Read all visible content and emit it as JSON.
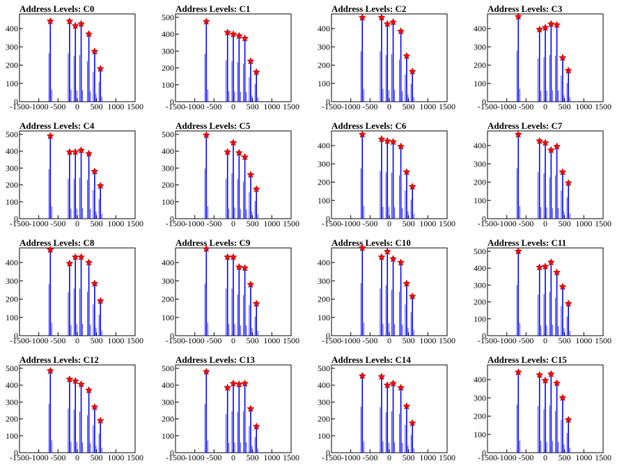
{
  "chart_data": [
    {
      "type": "bar",
      "title": "Address Levels: C0",
      "xlim": [
        -1500,
        1500
      ],
      "ylim": [
        0,
        480
      ],
      "yticks": [
        0,
        100,
        200,
        300,
        400
      ],
      "xticks": [
        -1500,
        -1000,
        -500,
        0,
        500,
        1000,
        1500
      ],
      "x": [
        -700,
        -200,
        -50,
        100,
        300,
        450,
        600
      ],
      "values": [
        440,
        440,
        415,
        425,
        370,
        275,
        180
      ]
    },
    {
      "type": "bar",
      "title": "Address Levels: C1",
      "xlim": [
        -1500,
        1500
      ],
      "ylim": [
        0,
        520
      ],
      "yticks": [
        0,
        100,
        200,
        300,
        400,
        500
      ],
      "xticks": [
        -1500,
        -1000,
        -500,
        0,
        500,
        1000,
        1500
      ],
      "x": [
        -700,
        -150,
        0,
        150,
        300,
        450,
        600
      ],
      "values": [
        475,
        410,
        400,
        390,
        375,
        240,
        175
      ]
    },
    {
      "type": "bar",
      "title": "Address Levels: C2",
      "xlim": [
        -1500,
        1500
      ],
      "ylim": [
        0,
        480
      ],
      "yticks": [
        0,
        100,
        200,
        300,
        400
      ],
      "xticks": [
        -1500,
        -1000,
        -500,
        0,
        500,
        1000,
        1500
      ],
      "x": [
        -700,
        -200,
        -50,
        100,
        300,
        450,
        600
      ],
      "values": [
        460,
        460,
        425,
        435,
        385,
        250,
        165
      ]
    },
    {
      "type": "bar",
      "title": "Address Levels: C3",
      "xlim": [
        -1500,
        1500
      ],
      "ylim": [
        0,
        480
      ],
      "yticks": [
        0,
        100,
        200,
        300,
        400
      ],
      "xticks": [
        -1500,
        -1000,
        -500,
        0,
        500,
        1000,
        1500
      ],
      "x": [
        -700,
        -150,
        0,
        150,
        300,
        450,
        600
      ],
      "values": [
        465,
        395,
        405,
        425,
        420,
        240,
        170
      ]
    },
    {
      "type": "bar",
      "title": "Address Levels: C4",
      "xlim": [
        -1500,
        1500
      ],
      "ylim": [
        0,
        520
      ],
      "yticks": [
        0,
        100,
        200,
        300,
        400,
        500
      ],
      "xticks": [
        -1500,
        -1000,
        -500,
        0,
        500,
        1000,
        1500
      ],
      "x": [
        -700,
        -200,
        -50,
        100,
        300,
        450,
        600
      ],
      "values": [
        490,
        395,
        395,
        405,
        385,
        280,
        195
      ]
    },
    {
      "type": "bar",
      "title": "Address Levels: C5",
      "xlim": [
        -1500,
        1500
      ],
      "ylim": [
        0,
        520
      ],
      "yticks": [
        0,
        100,
        200,
        300,
        400,
        500
      ],
      "xticks": [
        -1500,
        -1000,
        -500,
        0,
        500,
        1000,
        1500
      ],
      "x": [
        -700,
        -150,
        0,
        150,
        300,
        450,
        600
      ],
      "values": [
        495,
        395,
        450,
        390,
        365,
        260,
        175
      ]
    },
    {
      "type": "bar",
      "title": "Address Levels: C6",
      "xlim": [
        -1500,
        1500
      ],
      "ylim": [
        0,
        480
      ],
      "yticks": [
        0,
        100,
        200,
        300,
        400
      ],
      "xticks": [
        -1500,
        -1000,
        -500,
        0,
        500,
        1000,
        1500
      ],
      "x": [
        -700,
        -200,
        -50,
        100,
        300,
        450,
        600
      ],
      "values": [
        460,
        435,
        425,
        420,
        395,
        255,
        175
      ]
    },
    {
      "type": "bar",
      "title": "Address Levels: C7",
      "xlim": [
        -1500,
        1500
      ],
      "ylim": [
        0,
        480
      ],
      "yticks": [
        0,
        100,
        200,
        300,
        400
      ],
      "xticks": [
        -1500,
        -1000,
        -500,
        0,
        500,
        1000,
        1500
      ],
      "x": [
        -700,
        -150,
        0,
        150,
        300,
        450,
        600
      ],
      "values": [
        460,
        425,
        415,
        375,
        395,
        255,
        195
      ]
    },
    {
      "type": "bar",
      "title": "Address Levels: C8",
      "xlim": [
        -1500,
        1500
      ],
      "ylim": [
        0,
        480
      ],
      "yticks": [
        0,
        100,
        200,
        300,
        400
      ],
      "xticks": [
        -1500,
        -1000,
        -500,
        0,
        500,
        1000,
        1500
      ],
      "x": [
        -700,
        -200,
        -50,
        100,
        300,
        450,
        600
      ],
      "values": [
        470,
        395,
        430,
        430,
        400,
        285,
        190
      ]
    },
    {
      "type": "bar",
      "title": "Address Levels: C9",
      "xlim": [
        -1500,
        1500
      ],
      "ylim": [
        0,
        480
      ],
      "yticks": [
        0,
        100,
        200,
        300,
        400
      ],
      "xticks": [
        -1500,
        -1000,
        -500,
        0,
        500,
        1000,
        1500
      ],
      "x": [
        -700,
        -150,
        0,
        150,
        300,
        450,
        600
      ],
      "values": [
        475,
        430,
        430,
        375,
        370,
        280,
        175
      ]
    },
    {
      "type": "bar",
      "title": "Address Levels: C10",
      "xlim": [
        -1500,
        1500
      ],
      "ylim": [
        0,
        480
      ],
      "yticks": [
        0,
        100,
        200,
        300,
        400
      ],
      "xticks": [
        -1500,
        -1000,
        -500,
        0,
        500,
        1000,
        1500
      ],
      "x": [
        -700,
        -200,
        -50,
        100,
        300,
        450,
        600
      ],
      "values": [
        480,
        430,
        460,
        420,
        400,
        285,
        215
      ]
    },
    {
      "type": "bar",
      "title": "Address Levels: C11",
      "xlim": [
        -1500,
        1500
      ],
      "ylim": [
        0,
        520
      ],
      "yticks": [
        0,
        100,
        200,
        300,
        400,
        500
      ],
      "xticks": [
        -1500,
        -1000,
        -500,
        0,
        500,
        1000,
        1500
      ],
      "x": [
        -700,
        -150,
        0,
        150,
        300,
        450,
        600
      ],
      "values": [
        500,
        405,
        410,
        435,
        375,
        290,
        190
      ]
    },
    {
      "type": "bar",
      "title": "Address Levels: C12",
      "xlim": [
        -1500,
        1500
      ],
      "ylim": [
        0,
        520
      ],
      "yticks": [
        0,
        100,
        200,
        300,
        400,
        500
      ],
      "xticks": [
        -1500,
        -1000,
        -500,
        0,
        500,
        1000,
        1500
      ],
      "x": [
        -700,
        -200,
        -50,
        100,
        300,
        450,
        600
      ],
      "values": [
        485,
        435,
        425,
        405,
        370,
        270,
        190
      ]
    },
    {
      "type": "bar",
      "title": "Address Levels: C13",
      "xlim": [
        -1500,
        1500
      ],
      "ylim": [
        0,
        520
      ],
      "yticks": [
        0,
        100,
        200,
        300,
        400,
        500
      ],
      "xticks": [
        -1500,
        -1000,
        -500,
        0,
        500,
        1000,
        1500
      ],
      "x": [
        -700,
        -150,
        0,
        150,
        300,
        450,
        600
      ],
      "values": [
        480,
        385,
        410,
        405,
        410,
        260,
        155
      ]
    },
    {
      "type": "bar",
      "title": "Address Levels: C14",
      "xlim": [
        -1500,
        1500
      ],
      "ylim": [
        0,
        520
      ],
      "yticks": [
        0,
        100,
        200,
        300,
        400,
        500
      ],
      "xticks": [
        -1500,
        -1000,
        -500,
        0,
        500,
        1000,
        1500
      ],
      "x": [
        -700,
        -200,
        -50,
        100,
        300,
        450,
        600
      ],
      "values": [
        455,
        450,
        400,
        410,
        385,
        275,
        175
      ]
    },
    {
      "type": "bar",
      "title": "Address Levels: C15",
      "xlim": [
        -1500,
        1500
      ],
      "ylim": [
        0,
        480
      ],
      "yticks": [
        0,
        100,
        200,
        300,
        400
      ],
      "xticks": [
        -1500,
        -1000,
        -500,
        0,
        500,
        1000,
        1500
      ],
      "x": [
        -700,
        -150,
        0,
        150,
        300,
        450,
        600
      ],
      "values": [
        440,
        425,
        395,
        430,
        380,
        300,
        180
      ]
    }
  ],
  "colors": {
    "bar": "#0000ff",
    "marker": "#ff0000",
    "marker_edge": "#800000",
    "axis": "#000000"
  }
}
